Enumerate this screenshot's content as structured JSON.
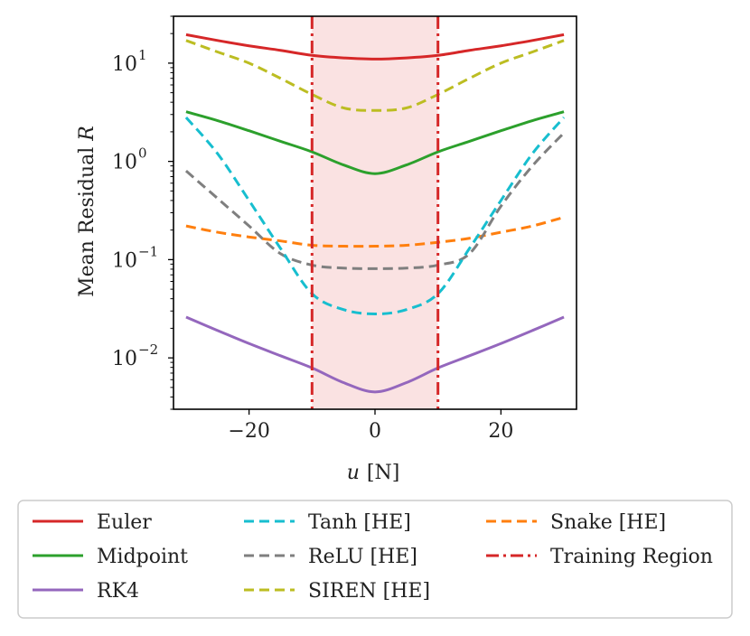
{
  "chart_data": {
    "type": "line",
    "title": "",
    "xlabel": "u [N]",
    "xlabel_parts": {
      "var": "u",
      "unit": "[N]"
    },
    "ylabel": "Mean Residual R",
    "ylabel_parts": {
      "text": "Mean Residual ",
      "var": "R"
    },
    "yscale": "log",
    "xlim": [
      -32,
      32
    ],
    "ylim": [
      0.003,
      30
    ],
    "xticks": [
      {
        "value": -20,
        "label": "−20"
      },
      {
        "value": 0,
        "label": "0"
      },
      {
        "value": 20,
        "label": "20"
      }
    ],
    "yticks": [
      {
        "value": 0.01,
        "base": "10",
        "exp": "−2"
      },
      {
        "value": 0.1,
        "base": "10",
        "exp": "−1"
      },
      {
        "value": 1,
        "base": "10",
        "exp": "0"
      },
      {
        "value": 10,
        "base": "10",
        "exp": "1"
      }
    ],
    "training_region": {
      "x0": -10,
      "x1": 10,
      "label": "Training Region",
      "color": "#d62728",
      "fill": "#f5c6c6"
    },
    "x": [
      -30,
      -25,
      -20,
      -15,
      -10,
      -5,
      0,
      5,
      10,
      15,
      20,
      25,
      30
    ],
    "series": [
      {
        "name": "Euler",
        "color": "#d62728",
        "style": "solid",
        "values": [
          19.5,
          17,
          15,
          13.5,
          12,
          11.3,
          11,
          11.3,
          12,
          13.5,
          15,
          17,
          19.5
        ]
      },
      {
        "name": "Midpoint",
        "color": "#2ca02c",
        "style": "solid",
        "values": [
          3.2,
          2.6,
          2.05,
          1.6,
          1.25,
          0.92,
          0.75,
          0.92,
          1.25,
          1.6,
          2.05,
          2.6,
          3.2
        ]
      },
      {
        "name": "RK4",
        "color": "#9467bd",
        "style": "solid",
        "values": [
          0.026,
          0.019,
          0.014,
          0.0105,
          0.0079,
          0.0056,
          0.0045,
          0.0056,
          0.0079,
          0.0105,
          0.014,
          0.019,
          0.026
        ]
      },
      {
        "name": "Tanh [HE]",
        "color": "#17becf",
        "style": "dashed",
        "values": [
          2.8,
          1.2,
          0.4,
          0.13,
          0.045,
          0.031,
          0.028,
          0.031,
          0.045,
          0.13,
          0.4,
          1.2,
          2.8
        ]
      },
      {
        "name": "ReLU [HE]",
        "color": "#7f7f7f",
        "style": "dashed",
        "values": [
          0.8,
          0.42,
          0.22,
          0.115,
          0.088,
          0.082,
          0.081,
          0.082,
          0.088,
          0.115,
          0.35,
          0.9,
          1.95
        ]
      },
      {
        "name": "SIREN [HE]",
        "color": "#bcbd22",
        "style": "dashed",
        "values": [
          17,
          13,
          10,
          7,
          4.8,
          3.5,
          3.3,
          3.5,
          4.8,
          7,
          10,
          13,
          17
        ]
      },
      {
        "name": "Snake [HE]",
        "color": "#ff7f0e",
        "style": "dashed",
        "values": [
          0.22,
          0.19,
          0.17,
          0.155,
          0.14,
          0.137,
          0.137,
          0.14,
          0.15,
          0.165,
          0.19,
          0.22,
          0.27
        ]
      }
    ],
    "legend": {
      "position": "bottom",
      "entries": [
        {
          "label": "Euler",
          "color": "#d62728",
          "style": "solid"
        },
        {
          "label": "Midpoint",
          "color": "#2ca02c",
          "style": "solid"
        },
        {
          "label": "RK4",
          "color": "#9467bd",
          "style": "solid"
        },
        {
          "label": "Tanh [HE]",
          "color": "#17becf",
          "style": "dashed"
        },
        {
          "label": "ReLU [HE]",
          "color": "#7f7f7f",
          "style": "dashed"
        },
        {
          "label": "SIREN [HE]",
          "color": "#bcbd22",
          "style": "dashed"
        },
        {
          "label": "Snake [HE]",
          "color": "#ff7f0e",
          "style": "dashed"
        },
        {
          "label": "Training Region",
          "color": "#d62728",
          "style": "dashdot"
        }
      ]
    },
    "grid": false
  }
}
